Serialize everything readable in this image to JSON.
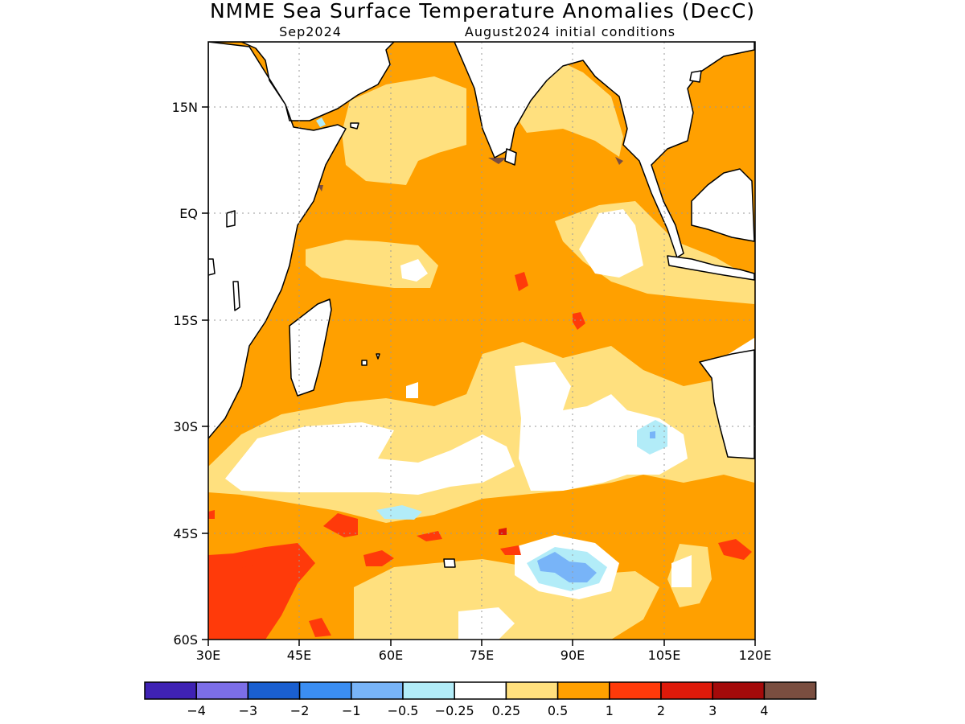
{
  "title": "NMME Sea Surface Temperature Anomalies (DecC)",
  "subtitle_left": "Sep2024",
  "subtitle_right": "August2024 initial conditions",
  "y_ticks": [
    "15N",
    "EQ",
    "15S",
    "30S",
    "45S",
    "60S"
  ],
  "x_ticks": [
    "30E",
    "45E",
    "60E",
    "75E",
    "90E",
    "105E",
    "120E"
  ],
  "map_extent": {
    "lon": [
      30,
      120
    ],
    "lat": [
      -60,
      24
    ]
  },
  "colorbar": {
    "colors": [
      "#3f22b4",
      "#7c6ee8",
      "#1a5fd0",
      "#3b8ef2",
      "#78b4f8",
      "#b2ecf8",
      "#ffffff",
      "#ffe07e",
      "#ffa000",
      "#ff3a0a",
      "#de1a0a",
      "#a40a0a",
      "#7a4e40"
    ],
    "labels": [
      "−4",
      "−3",
      "−2",
      "−1",
      "−0.5",
      "−0.25",
      "0.25",
      "0.5",
      "1",
      "2",
      "3",
      "4"
    ]
  }
}
